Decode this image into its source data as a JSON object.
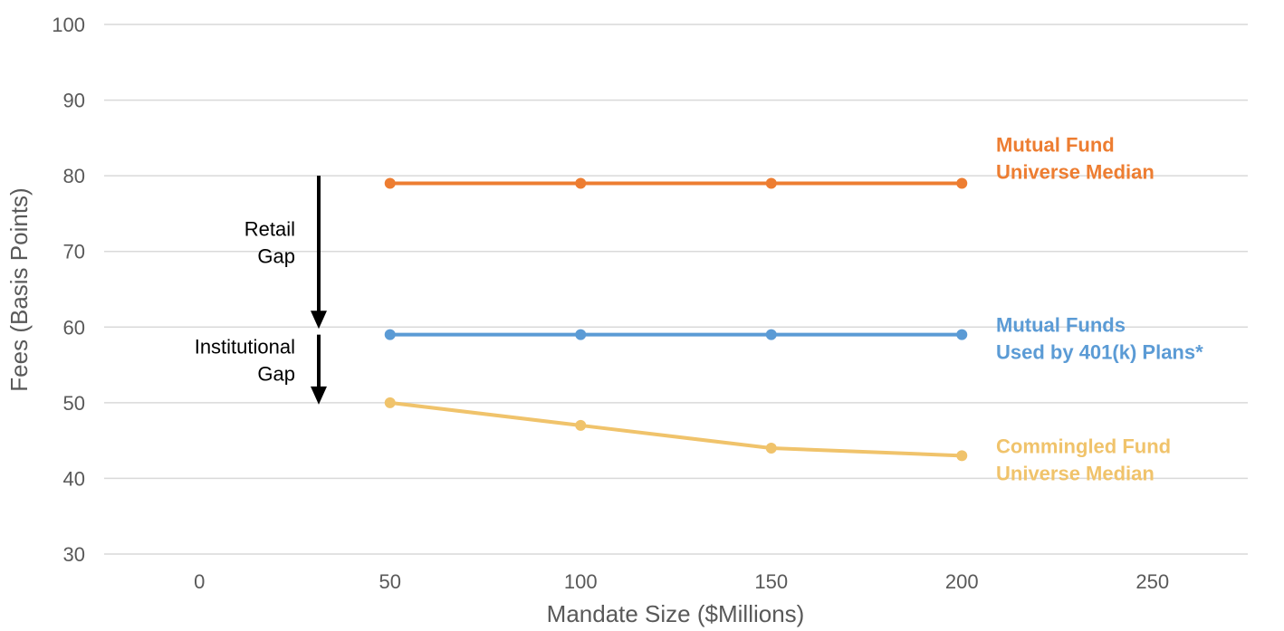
{
  "chart_data": {
    "type": "line",
    "title": "",
    "xlabel": "Mandate Size ($Millions)",
    "ylabel": "Fees (Basis Points)",
    "xlim": [
      -25,
      275
    ],
    "ylim": [
      30,
      100
    ],
    "x_ticks": [
      0,
      50,
      100,
      150,
      200,
      250
    ],
    "y_ticks": [
      30,
      40,
      50,
      60,
      70,
      80,
      90,
      100
    ],
    "x": [
      50,
      100,
      150,
      200
    ],
    "grid": "horizontal",
    "series": [
      {
        "name": "Mutual Fund Universe Median",
        "label_lines": [
          "Mutual Fund",
          "Universe Median"
        ],
        "color": "#ED7D31",
        "values": [
          79,
          79,
          79,
          79
        ]
      },
      {
        "name": "Mutual Funds Used by 401(k) Plans*",
        "label_lines": [
          "Mutual Funds",
          "Used by 401(k) Plans*"
        ],
        "color": "#5B9BD5",
        "values": [
          59,
          59,
          59,
          59
        ]
      },
      {
        "name": "Commingled Fund Universe Median",
        "label_lines": [
          "Commingled  Fund",
          "Universe Median"
        ],
        "color": "#F0C36B",
        "values": [
          50,
          47,
          44,
          43
        ]
      }
    ],
    "annotations": [
      {
        "label_lines": [
          "Retail",
          "Gap"
        ],
        "arrow_from": 80,
        "arrow_to": 60
      },
      {
        "label_lines": [
          "Institutional",
          "Gap"
        ],
        "arrow_from": 59,
        "arrow_to": 50
      }
    ]
  }
}
